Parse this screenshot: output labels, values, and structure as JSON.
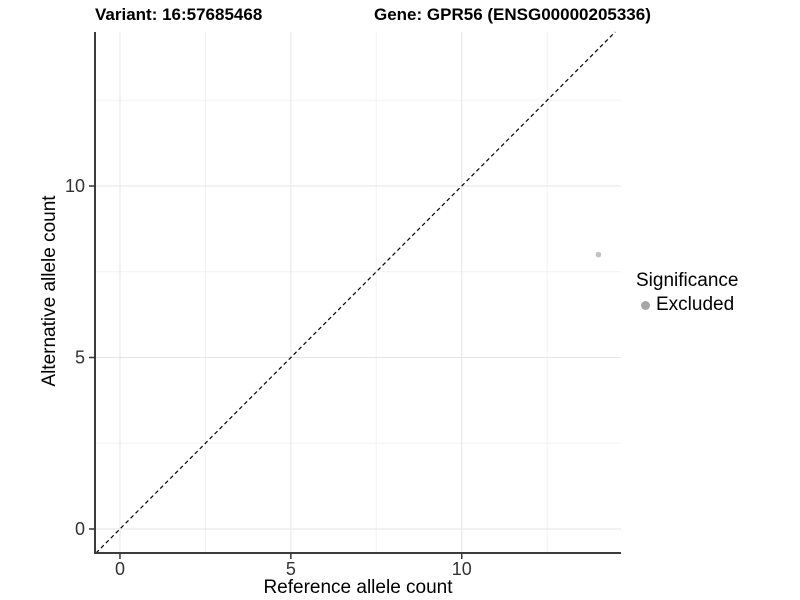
{
  "chart_data": {
    "type": "scatter",
    "titles": [
      "Variant: 16:57685468",
      "Gene: GPR56 (ENSG00000205336)"
    ],
    "xlabel": "Reference allele count",
    "ylabel": "Alternative allele count",
    "x_ticks": [
      "0",
      "5",
      "10"
    ],
    "y_ticks": [
      "0",
      "5",
      "10"
    ],
    "x_tick_values": [
      0,
      5,
      10
    ],
    "y_tick_values": [
      0,
      5,
      10
    ],
    "x_minor_tick_values": [
      2.5,
      7.5,
      12.5
    ],
    "y_minor_tick_values": [
      2.5,
      7.5,
      12.5
    ],
    "xlim": [
      -0.73,
      14.66
    ],
    "ylim": [
      -0.7,
      14.49
    ],
    "grid": true,
    "legend_position": "right",
    "series": [
      {
        "name": "Excluded",
        "color": "#c2c2c2",
        "points": [
          {
            "x": 14,
            "y": 8
          }
        ]
      }
    ],
    "reference_line": {
      "type": "identity y=x",
      "style": "dashed",
      "color": "#000000"
    },
    "legend": {
      "title": "Significance",
      "items": [
        {
          "label": "Excluded",
          "color": "#a6a6a6"
        }
      ]
    },
    "colors": {
      "axis_line": "#3c3c3c",
      "tick_label": "#333333",
      "grid_major": "#e5e5e5",
      "grid_minor": "#f2f2f2",
      "background": "#ffffff"
    }
  }
}
